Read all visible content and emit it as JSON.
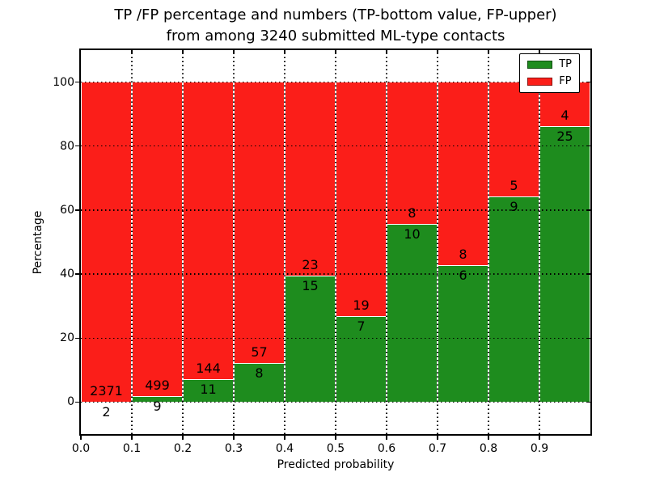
{
  "title": {
    "line1": "TP /FP percentage and numbers (TP-bottom value, FP-upper)",
    "line2": "from among 3240 submitted ML-type contacts"
  },
  "axes": {
    "xlabel": "Predicted probability",
    "ylabel": "Percentage",
    "x_tick_labels": [
      "0.0",
      "0.1",
      "0.2",
      "0.3",
      "0.4",
      "0.5",
      "0.6",
      "0.7",
      "0.8",
      "0.9"
    ],
    "y_tick_labels": [
      "0",
      "20",
      "40",
      "60",
      "80",
      "100"
    ],
    "y_tick_values": [
      0,
      20,
      40,
      60,
      80,
      100
    ]
  },
  "legend": {
    "items": [
      {
        "label": "TP",
        "color": "#1e8c1e"
      },
      {
        "label": "FP",
        "color": "#fb1e19"
      }
    ]
  },
  "colors": {
    "tp_green": "#1e8c1e",
    "fp_red": "#fb1e19",
    "grid": "#000000",
    "background": "#ffffff"
  },
  "chart_data": {
    "type": "bar",
    "stacked": true,
    "normalized_to_percent": true,
    "title": "TP /FP percentage and numbers (TP-bottom value, FP-upper) from among 3240 submitted ML-type contacts",
    "xlabel": "Predicted probability",
    "ylabel": "Percentage",
    "categories": [
      "0.0",
      "0.1",
      "0.2",
      "0.3",
      "0.4",
      "0.5",
      "0.6",
      "0.7",
      "0.8",
      "0.9"
    ],
    "bin_width": 0.1,
    "series": [
      {
        "name": "TP",
        "color": "#1e8c1e",
        "counts": [
          2,
          9,
          11,
          8,
          15,
          7,
          10,
          6,
          9,
          25
        ],
        "percent": [
          0.08,
          1.77,
          7.1,
          12.31,
          39.47,
          26.92,
          55.56,
          42.86,
          64.29,
          86.21
        ]
      },
      {
        "name": "FP",
        "color": "#fb1e19",
        "counts": [
          2371,
          499,
          144,
          57,
          23,
          19,
          8,
          8,
          5,
          4
        ],
        "percent": [
          99.92,
          98.23,
          92.9,
          87.69,
          60.53,
          73.08,
          44.44,
          57.14,
          35.71,
          13.79
        ]
      }
    ],
    "total_contacts": 3240,
    "xlim": [
      0.0,
      1.0
    ],
    "ylim": [
      -10,
      110
    ],
    "grid": true,
    "legend_position": "upper right"
  }
}
